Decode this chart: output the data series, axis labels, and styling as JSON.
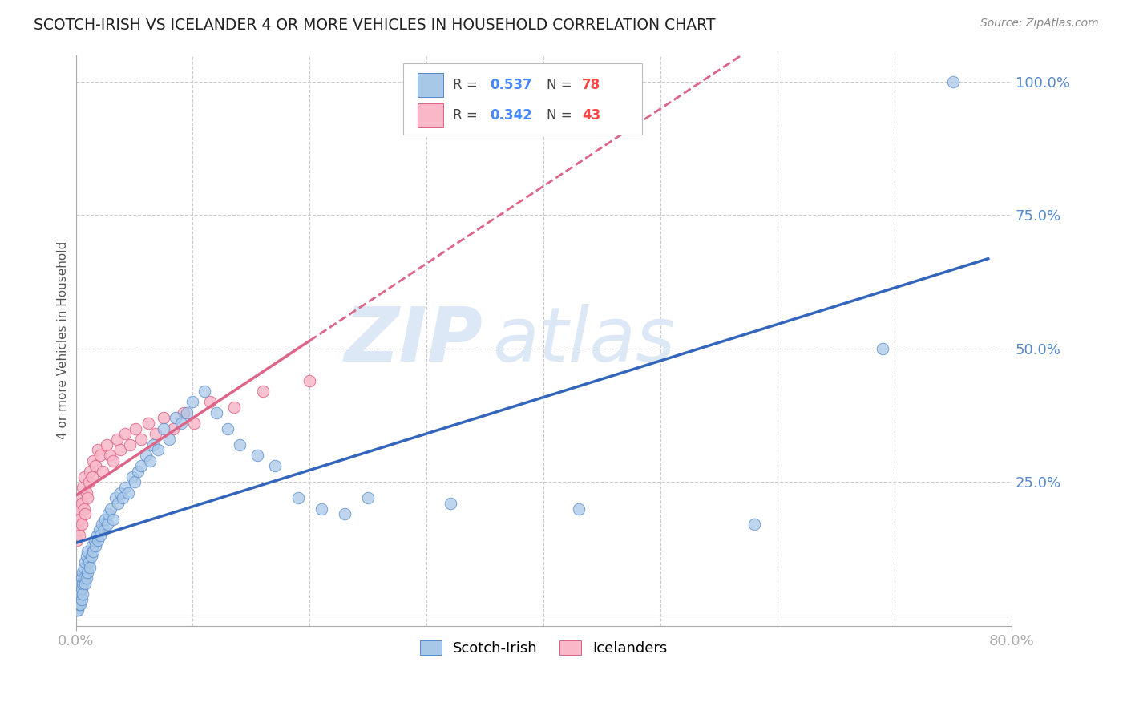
{
  "title": "SCOTCH-IRISH VS ICELANDER 4 OR MORE VEHICLES IN HOUSEHOLD CORRELATION CHART",
  "source": "Source: ZipAtlas.com",
  "ylabel": "4 or more Vehicles in Household",
  "right_ytick_vals": [
    1.0,
    0.75,
    0.5,
    0.25
  ],
  "right_ytick_labels": [
    "100.0%",
    "75.0%",
    "50.0%",
    "25.0%"
  ],
  "xmin": 0.0,
  "xmax": 0.8,
  "ymin": -0.02,
  "ymax": 1.05,
  "scotch_irish_R": 0.537,
  "scotch_irish_N": 78,
  "icelander_R": 0.342,
  "icelander_N": 43,
  "blue_fill": "#a8c8e8",
  "blue_edge": "#5588cc",
  "pink_fill": "#f8b8c8",
  "pink_edge": "#e06080",
  "blue_line": "#3366bb",
  "pink_line": "#dd6688",
  "background_color": "#ffffff",
  "grid_color": "#cccccc",
  "watermark_color": "#dce8f5",
  "scotch_x": [
    0.001,
    0.001,
    0.002,
    0.002,
    0.002,
    0.003,
    0.003,
    0.003,
    0.004,
    0.004,
    0.004,
    0.005,
    0.005,
    0.005,
    0.006,
    0.006,
    0.006,
    0.007,
    0.007,
    0.008,
    0.008,
    0.009,
    0.009,
    0.01,
    0.01,
    0.011,
    0.012,
    0.013,
    0.014,
    0.015,
    0.016,
    0.017,
    0.018,
    0.019,
    0.02,
    0.021,
    0.022,
    0.024,
    0.025,
    0.027,
    0.028,
    0.03,
    0.032,
    0.034,
    0.036,
    0.038,
    0.04,
    0.042,
    0.045,
    0.048,
    0.05,
    0.053,
    0.056,
    0.06,
    0.063,
    0.066,
    0.07,
    0.075,
    0.08,
    0.085,
    0.09,
    0.095,
    0.1,
    0.11,
    0.12,
    0.13,
    0.14,
    0.155,
    0.17,
    0.19,
    0.21,
    0.23,
    0.25,
    0.32,
    0.43,
    0.58,
    0.69,
    0.75
  ],
  "scotch_y": [
    0.01,
    0.03,
    0.02,
    0.04,
    0.01,
    0.03,
    0.05,
    0.02,
    0.04,
    0.06,
    0.02,
    0.05,
    0.07,
    0.03,
    0.06,
    0.08,
    0.04,
    0.07,
    0.09,
    0.06,
    0.1,
    0.07,
    0.11,
    0.08,
    0.12,
    0.1,
    0.09,
    0.11,
    0.13,
    0.12,
    0.14,
    0.13,
    0.15,
    0.14,
    0.16,
    0.15,
    0.17,
    0.16,
    0.18,
    0.17,
    0.19,
    0.2,
    0.18,
    0.22,
    0.21,
    0.23,
    0.22,
    0.24,
    0.23,
    0.26,
    0.25,
    0.27,
    0.28,
    0.3,
    0.29,
    0.32,
    0.31,
    0.35,
    0.33,
    0.37,
    0.36,
    0.38,
    0.4,
    0.42,
    0.38,
    0.35,
    0.32,
    0.3,
    0.28,
    0.22,
    0.2,
    0.19,
    0.22,
    0.21,
    0.2,
    0.17,
    0.5,
    1.0
  ],
  "icelander_x": [
    0.001,
    0.001,
    0.002,
    0.002,
    0.003,
    0.003,
    0.004,
    0.004,
    0.005,
    0.005,
    0.006,
    0.007,
    0.007,
    0.008,
    0.009,
    0.01,
    0.011,
    0.012,
    0.014,
    0.015,
    0.017,
    0.019,
    0.021,
    0.023,
    0.026,
    0.029,
    0.032,
    0.035,
    0.038,
    0.042,
    0.046,
    0.051,
    0.056,
    0.062,
    0.068,
    0.075,
    0.083,
    0.092,
    0.101,
    0.115,
    0.135,
    0.16,
    0.2
  ],
  "icelander_y": [
    0.14,
    0.17,
    0.16,
    0.19,
    0.15,
    0.2,
    0.18,
    0.22,
    0.17,
    0.21,
    0.24,
    0.2,
    0.26,
    0.19,
    0.23,
    0.22,
    0.25,
    0.27,
    0.26,
    0.29,
    0.28,
    0.31,
    0.3,
    0.27,
    0.32,
    0.3,
    0.29,
    0.33,
    0.31,
    0.34,
    0.32,
    0.35,
    0.33,
    0.36,
    0.34,
    0.37,
    0.35,
    0.38,
    0.36,
    0.4,
    0.39,
    0.42,
    0.44
  ]
}
